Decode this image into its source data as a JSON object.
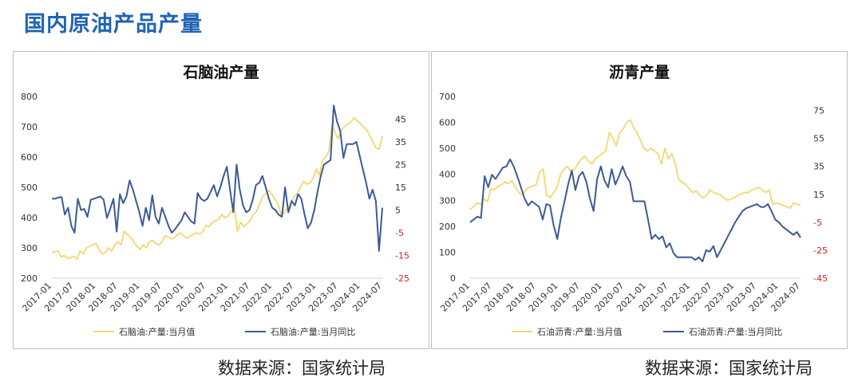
{
  "page_title": "国内原油产品产量",
  "source_a": "数据来源：国家统计局",
  "source_b": "数据来源：国家统计局",
  "colors": {
    "title": "#1f64b4",
    "value_line": "#f5d76e",
    "yoy_line": "#3d5a96",
    "negative_tick": "#d42020"
  },
  "chart_data": [
    {
      "type": "line",
      "title": "石脑油产量",
      "x_tick_labels": [
        "2017-01",
        "2017-07",
        "2018-01",
        "2018-07",
        "2019-01",
        "2019-07",
        "2020-01",
        "2020-07",
        "2021-01",
        "2021-07",
        "2022-01",
        "2022-07",
        "2023-01",
        "2023-07",
        "2024-01",
        "2024-07"
      ],
      "y_left": {
        "lim": [
          200,
          800
        ],
        "ticks": [
          "200",
          "300",
          "400",
          "500",
          "600",
          "700",
          "800"
        ]
      },
      "y_right": {
        "lim": [
          -25,
          55
        ],
        "ticks": [
          "-25",
          "-15",
          "-5",
          "5",
          "15",
          "25",
          "35",
          "45"
        ]
      },
      "grid": false,
      "legend_position": "bottom",
      "series": [
        {
          "name": "石脑油:产量:当月值",
          "axis": "left",
          "values": [
            285,
            288,
            290,
            270,
            275,
            265,
            268,
            272,
            262,
            290,
            280,
            300,
            305,
            310,
            315,
            295,
            280,
            285,
            300,
            290,
            310,
            320,
            310,
            355,
            345,
            335,
            320,
            305,
            295,
            310,
            300,
            320,
            325,
            315,
            310,
            320,
            340,
            335,
            330,
            335,
            345,
            350,
            338,
            332,
            340,
            345,
            350,
            345,
            355,
            375,
            370,
            385,
            390,
            395,
            410,
            400,
            405,
            420,
            430,
            355,
            385,
            370,
            380,
            390,
            410,
            420,
            445,
            470,
            480,
            490,
            475,
            460,
            440,
            405,
            420,
            430,
            450,
            470,
            480,
            500,
            520,
            510,
            515,
            530,
            560,
            540,
            590,
            600,
            620,
            705,
            680,
            660,
            690,
            700,
            710,
            715,
            730,
            720,
            710,
            700,
            690,
            670,
            650,
            630,
            625,
            670
          ]
        },
        {
          "name": "石脑油:产量:当月同比",
          "axis": "right",
          "values": [
            10,
            10,
            10.5,
            10.7,
            3,
            6,
            -2,
            -5,
            10,
            5,
            5.5,
            2,
            9.5,
            10,
            10.5,
            11,
            9.5,
            1.5,
            5.5,
            10,
            -4.5,
            12,
            8,
            11,
            18,
            14,
            9,
            4,
            -2,
            6,
            0.5,
            11.5,
            2,
            -1,
            6,
            2,
            -2,
            -5,
            -3.5,
            -1.5,
            0.5,
            4,
            2,
            0,
            -1,
            12.5,
            10,
            9,
            10,
            13,
            16,
            11,
            15,
            20,
            24,
            14,
            4,
            25,
            14,
            7,
            4,
            5,
            9.5,
            16,
            17,
            20,
            15,
            10,
            6,
            5,
            3,
            2,
            15,
            4,
            9,
            7,
            12,
            10,
            3,
            -3,
            -0.5,
            5,
            13,
            20,
            25,
            26,
            27,
            51,
            44,
            40,
            28,
            34,
            34,
            34,
            35,
            29,
            23,
            17,
            10,
            14,
            9,
            -13,
            6
          ]
        }
      ]
    },
    {
      "type": "line",
      "title": "沥青产量",
      "x_tick_labels": [
        "2017-01",
        "2017-07",
        "2018-01",
        "2018-07",
        "2019-01",
        "2019-07",
        "2020-01",
        "2020-07",
        "2021-01",
        "2021-07",
        "2022-01",
        "2022-07",
        "2023-01",
        "2023-07",
        "2024-01",
        "2024-07"
      ],
      "y_left": {
        "lim": [
          0,
          700
        ],
        "ticks": [
          "0",
          "100",
          "200",
          "300",
          "400",
          "500",
          "600",
          "700"
        ]
      },
      "y_right": {
        "lim": [
          -45,
          85
        ],
        "ticks": [
          "-45",
          "-25",
          "-5",
          "15",
          "35",
          "55",
          "75"
        ]
      },
      "grid": false,
      "legend_position": "bottom",
      "series": [
        {
          "name": "石油沥青:产量:当月值",
          "axis": "left",
          "values": [
            265,
            275,
            290,
            285,
            305,
            295,
            345,
            340,
            355,
            360,
            370,
            365,
            375,
            350,
            330,
            320,
            340,
            350,
            355,
            360,
            410,
            420,
            320,
            310,
            330,
            350,
            400,
            420,
            430,
            410,
            420,
            440,
            460,
            470,
            450,
            440,
            460,
            470,
            480,
            490,
            560,
            540,
            510,
            560,
            575,
            600,
            610,
            580,
            560,
            530,
            500,
            490,
            500,
            490,
            480,
            440,
            500,
            460,
            480,
            440,
            380,
            370,
            360,
            345,
            330,
            335,
            320,
            310,
            320,
            340,
            330,
            325,
            320,
            310,
            300,
            305,
            310,
            320,
            325,
            330,
            330,
            340,
            345,
            350,
            340,
            330,
            340,
            285,
            290,
            285,
            280,
            275,
            270,
            290,
            285,
            280
          ]
        },
        {
          "name": "石油沥青:产量:当月同比",
          "axis": "right",
          "values": [
            -5,
            -3,
            -1,
            -2,
            28,
            20,
            29,
            26,
            30,
            34,
            35,
            40,
            35,
            28,
            20,
            12,
            7,
            10,
            8,
            6,
            -3,
            8,
            7,
            -7,
            -17,
            -2,
            10,
            22,
            32,
            18,
            28,
            31,
            24,
            12,
            3,
            26,
            35,
            25,
            20,
            33,
            22,
            28,
            35,
            28,
            24,
            10,
            10,
            10,
            10,
            -3,
            -17,
            -14,
            -17,
            -15,
            -23,
            -20,
            -27,
            -30,
            -30,
            -30,
            -30,
            -30,
            -32,
            -30,
            -33,
            -25,
            -26,
            -22,
            -30,
            -25,
            -20,
            -15,
            -10,
            -5,
            -1,
            3,
            5,
            6,
            7,
            8,
            6,
            6,
            8,
            3,
            -3,
            -5,
            -8,
            -10,
            -12,
            -14,
            -12,
            -16
          ]
        }
      ]
    }
  ]
}
